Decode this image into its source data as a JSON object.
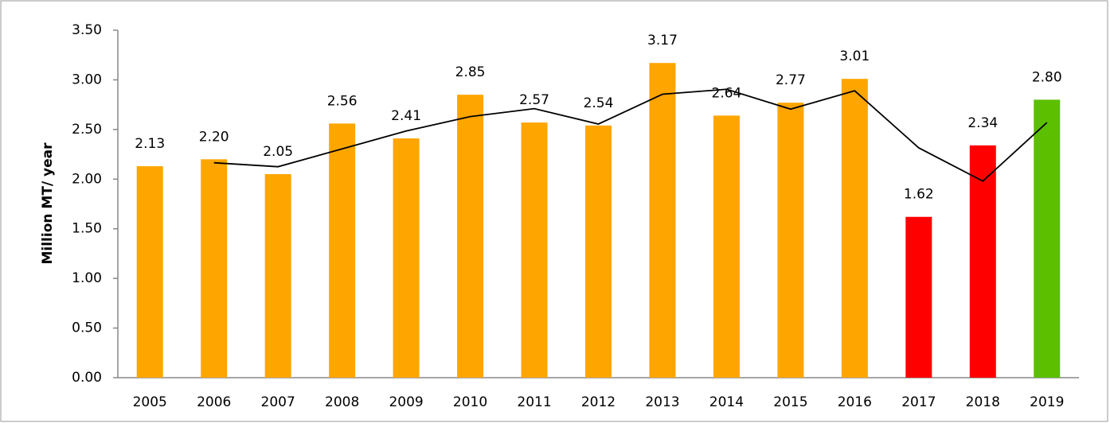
{
  "chart_data": {
    "type": "bar",
    "y_label": "Million MT/ year",
    "categories": [
      "2005",
      "2006",
      "2007",
      "2008",
      "2009",
      "2010",
      "2011",
      "2012",
      "2013",
      "2014",
      "2015",
      "2016",
      "2017",
      "2018",
      "2019"
    ],
    "values": [
      2.13,
      2.2,
      2.05,
      2.56,
      2.41,
      2.85,
      2.57,
      2.54,
      3.17,
      2.64,
      2.77,
      3.01,
      1.62,
      2.34,
      2.8
    ],
    "value_labels": [
      "2.13",
      "2.20",
      "2.05",
      "2.56",
      "2.41",
      "2.85",
      "2.57",
      "2.54",
      "3.17",
      "2.64",
      "2.77",
      "3.01",
      "1.62",
      "2.34",
      "2.80"
    ],
    "colors": [
      "#ffa500",
      "#ffa500",
      "#ffa500",
      "#ffa500",
      "#ffa500",
      "#ffa500",
      "#ffa500",
      "#ffa500",
      "#ffa500",
      "#ffa500",
      "#ffa500",
      "#ffa500",
      "#ff0000",
      "#ff0000",
      "#5cbf00"
    ],
    "line": {
      "color": "#000000",
      "values": [
        null,
        2.165,
        2.125,
        2.305,
        2.485,
        2.63,
        2.71,
        2.555,
        2.855,
        2.905,
        2.705,
        2.89,
        2.315,
        1.98,
        2.57
      ]
    },
    "ylim": [
      0,
      3.5
    ],
    "yticks": [
      {
        "value": 0,
        "label": "0.00"
      },
      {
        "value": 0.5,
        "label": "0.50"
      },
      {
        "value": 1,
        "label": "1.00"
      },
      {
        "value": 1.5,
        "label": "1.50"
      },
      {
        "value": 2,
        "label": "2.00"
      },
      {
        "value": 2.5,
        "label": "2.50"
      },
      {
        "value": 3,
        "label": "3.00"
      },
      {
        "value": 3.5,
        "label": "3.50"
      }
    ]
  }
}
